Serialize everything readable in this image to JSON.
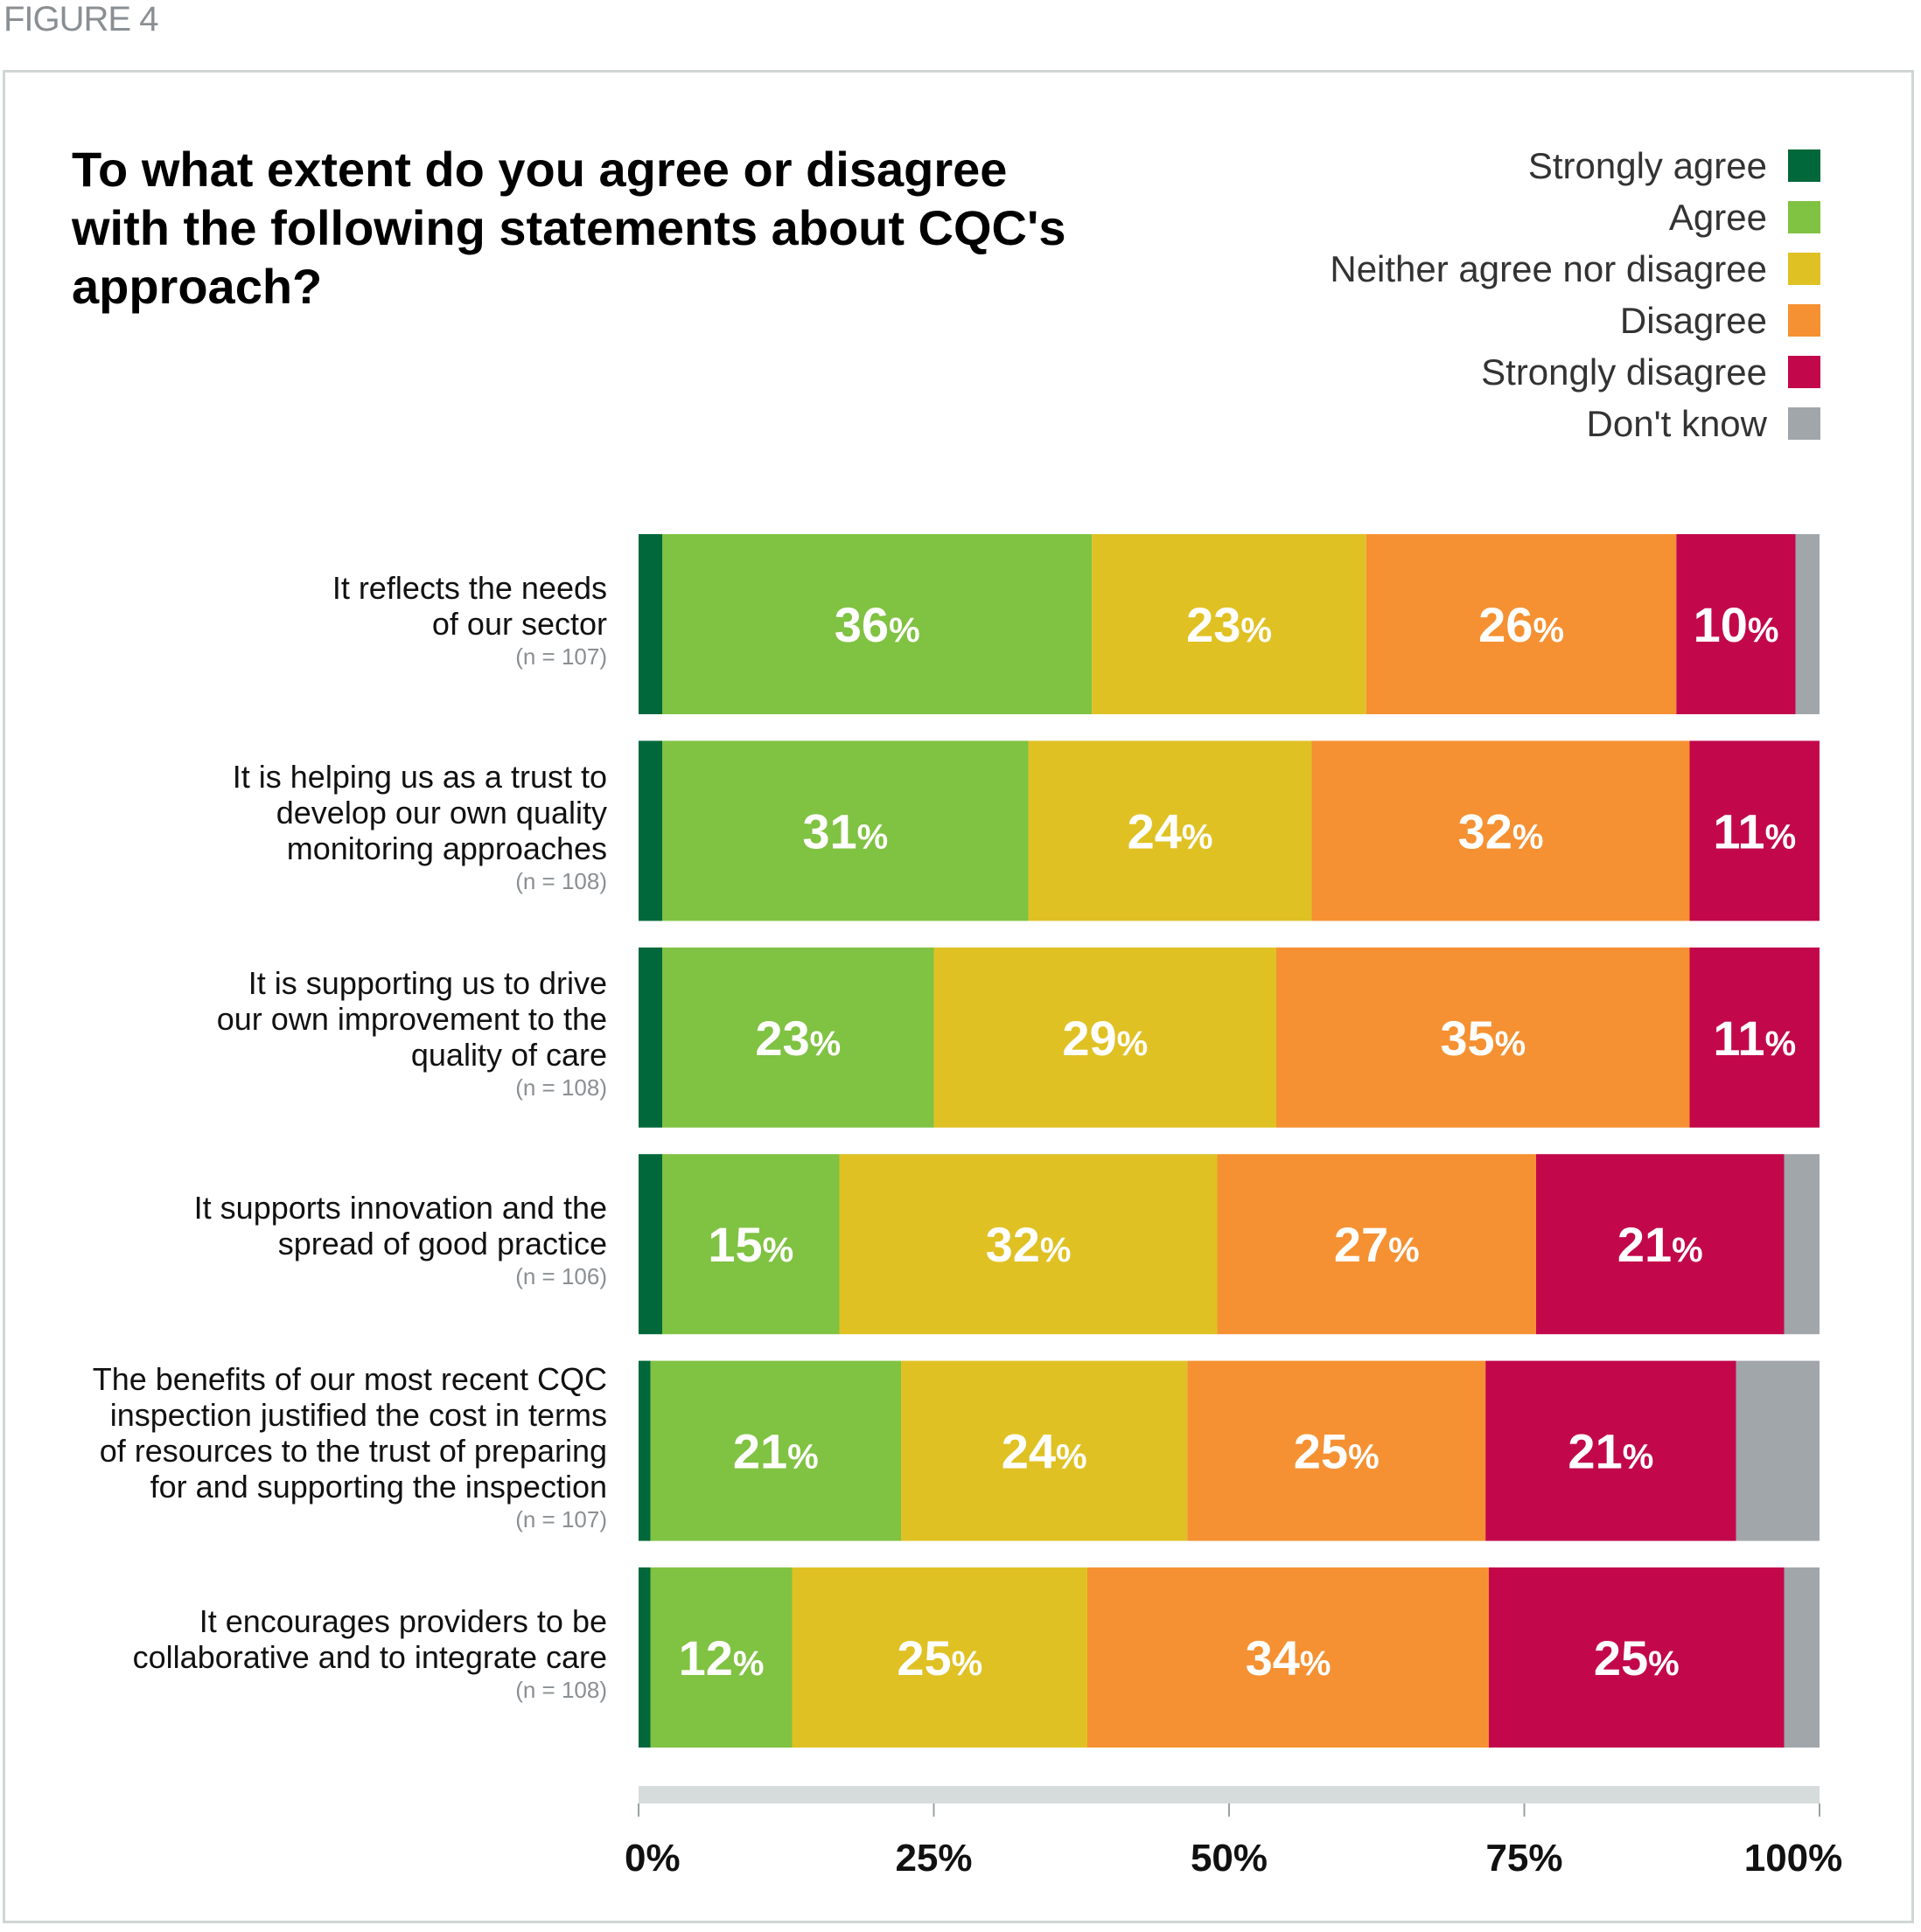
{
  "figure_label": "FIGURE 4",
  "chart_data": {
    "type": "bar",
    "orientation": "horizontal",
    "stacked": true,
    "title": "To what extent do you agree or disagree with the following statements about CQC's approach?",
    "xlim": [
      0,
      100
    ],
    "x_ticks": [
      "0%",
      "25%",
      "50%",
      "75%",
      "100%"
    ],
    "x_tick_values": [
      0,
      25,
      50,
      75,
      100
    ],
    "legend_position": "top-right",
    "legend": [
      {
        "name": "Strongly agree",
        "color": "#00683a"
      },
      {
        "name": "Agree",
        "color": "#80c242"
      },
      {
        "name": "Neither agree nor disagree",
        "color": "#e0c124"
      },
      {
        "name": "Disagree",
        "color": "#f59132"
      },
      {
        "name": "Strongly disagree",
        "color": "#c2084a"
      },
      {
        "name": "Don't know",
        "color": "#a1a6aa"
      }
    ],
    "categories": [
      {
        "label_lines": [
          "It reflects the needs",
          "of our sector"
        ],
        "n": "(n = 107)",
        "values": [
          2,
          36,
          23,
          26,
          10,
          2
        ],
        "labels": [
          "",
          "36%",
          "23%",
          "26%",
          "10%",
          ""
        ]
      },
      {
        "label_lines": [
          "It is helping us as a trust to",
          "develop our own quality",
          "monitoring approaches"
        ],
        "n": "(n = 108)",
        "values": [
          2,
          31,
          24,
          32,
          11,
          0
        ],
        "labels": [
          "",
          "31%",
          "24%",
          "32%",
          "11%",
          ""
        ]
      },
      {
        "label_lines": [
          "It is supporting us to drive",
          "our own improvement to the",
          "quality of care"
        ],
        "n": "(n = 108)",
        "values": [
          2,
          23,
          29,
          35,
          11,
          0
        ],
        "labels": [
          "",
          "23%",
          "29%",
          "35%",
          "11%",
          ""
        ]
      },
      {
        "label_lines": [
          "It supports innovation and the",
          "spread of good practice"
        ],
        "n": "(n = 106)",
        "values": [
          2,
          15,
          32,
          27,
          21,
          3
        ],
        "labels": [
          "",
          "15%",
          "32%",
          "27%",
          "21%",
          ""
        ]
      },
      {
        "label_lines": [
          "The benefits of our most recent CQC",
          "inspection justified the cost in terms",
          "of resources to the trust of preparing",
          "for and supporting the inspection"
        ],
        "n": "(n = 107)",
        "values": [
          1,
          21,
          24,
          25,
          21,
          7
        ],
        "labels": [
          "",
          "21%",
          "24%",
          "25%",
          "21%",
          ""
        ]
      },
      {
        "label_lines": [
          "It encourages providers to be",
          "collaborative and to integrate care"
        ],
        "n": "(n = 108)",
        "values": [
          1,
          12,
          25,
          34,
          25,
          3
        ],
        "labels": [
          "",
          "12%",
          "25%",
          "34%",
          "25%",
          ""
        ]
      }
    ]
  }
}
